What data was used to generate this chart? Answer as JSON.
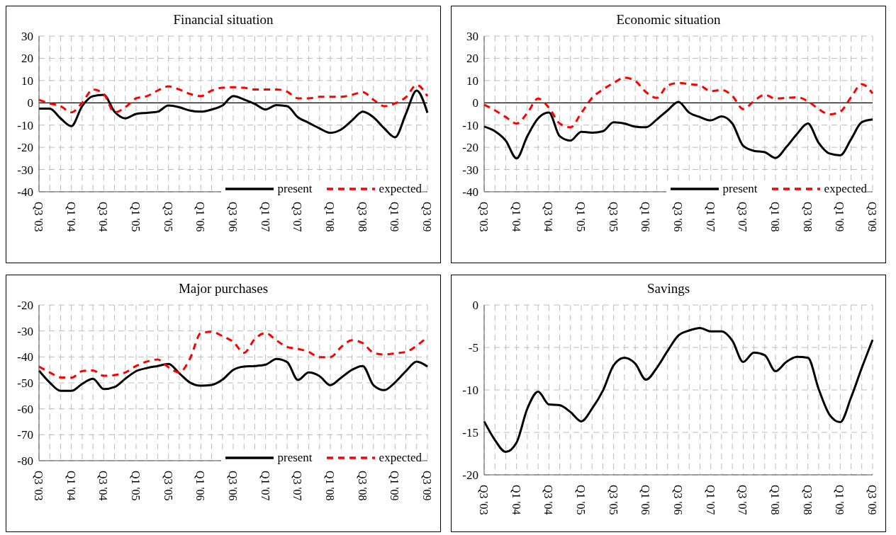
{
  "chart_data": [
    {
      "type": "line",
      "title": "Financial situation",
      "categories": [
        "Q3 '03",
        null,
        null,
        "Q1 '04",
        null,
        null,
        "Q3 '04",
        null,
        null,
        "Q1 '05",
        null,
        null,
        "Q3 '05",
        null,
        null,
        "Q1 '06",
        null,
        null,
        "Q3 '06",
        null,
        null,
        "Q1 '07",
        null,
        null,
        "Q3 '07",
        null,
        null,
        "Q1 '08",
        null,
        null,
        "Q3 '08",
        null,
        null,
        "Q1 '09",
        null,
        null,
        "Q3 '09"
      ],
      "series": [
        {
          "name": "present",
          "color": "#000000",
          "line_style": "solid",
          "values": [
            -2.6,
            -2.6,
            -7,
            -10.5,
            -1.5,
            3,
            3.6,
            -4,
            -7,
            -5,
            -4.5,
            -4,
            -1.2,
            -2,
            -3.5,
            -4,
            -3,
            -1.2,
            3,
            1.5,
            -0.5,
            -3,
            -1,
            -1.5,
            -6.5,
            -9,
            -11.5,
            -13.5,
            -12,
            -8,
            -4,
            -6.5,
            -11.5,
            -15.5,
            -5,
            5.5,
            -4.5
          ]
        },
        {
          "name": "expected",
          "color": "#ff0000",
          "line_style": "dashed",
          "values": [
            1.3,
            -0.3,
            -1.5,
            -4.3,
            0,
            6,
            4,
            -4.3,
            -2,
            2,
            3,
            5.5,
            7.4,
            6,
            4,
            3,
            5.5,
            6.8,
            7,
            6.8,
            6,
            6,
            6,
            5,
            2,
            2,
            2.7,
            2.7,
            2.7,
            3.6,
            4.8,
            1.4,
            -1.5,
            -0.3,
            2.5,
            8,
            3
          ]
        }
      ],
      "ylim": [
        -40,
        30
      ],
      "yticks": [
        -40,
        -30,
        -20,
        -10,
        0,
        10,
        20,
        30
      ],
      "grid": true,
      "legend": "bottom right",
      "ref_lines": [
        {
          "axis": "y",
          "value": 0,
          "color": "#000000"
        }
      ]
    },
    {
      "type": "line",
      "title": "Economic situation",
      "categories": [
        "Q3 '03",
        null,
        null,
        "Q1 '04",
        null,
        null,
        "Q3 '04",
        null,
        null,
        "Q1 '05",
        null,
        null,
        "Q3 '05",
        null,
        null,
        "Q1 '06",
        null,
        null,
        "Q3 '06",
        null,
        null,
        "Q1 '07",
        null,
        null,
        "Q3 '07",
        null,
        null,
        "Q1 '08",
        null,
        null,
        "Q3 '08",
        null,
        null,
        "Q1 '09",
        null,
        null,
        "Q3 '09"
      ],
      "series": [
        {
          "name": "present",
          "color": "#000000",
          "line_style": "solid",
          "values": [
            -10.7,
            -12.8,
            -17,
            -25,
            -15,
            -7,
            -4.4,
            -15,
            -17,
            -13,
            -13.4,
            -12.8,
            -8.7,
            -9.3,
            -10.7,
            -11,
            -7.5,
            -3.4,
            0.4,
            -4.4,
            -6.4,
            -7.9,
            -6.1,
            -9.3,
            -19.3,
            -21.6,
            -22.2,
            -24.8,
            -19.9,
            -14,
            -9.3,
            -18,
            -22.8,
            -23.6,
            -16.4,
            -8.7,
            -7.5
          ]
        },
        {
          "name": "expected",
          "color": "#ff0000",
          "line_style": "dashed",
          "values": [
            -0.8,
            -3.4,
            -6.4,
            -9.3,
            -4.6,
            1.9,
            -2.2,
            -9.3,
            -11,
            -4.6,
            2.2,
            6,
            8.9,
            11.3,
            9.8,
            4.8,
            2.2,
            7.8,
            8.9,
            8.4,
            7.8,
            5.2,
            5.8,
            3.1,
            -2.8,
            0.7,
            3.6,
            1.9,
            2.2,
            2.5,
            0.7,
            -2.8,
            -5.2,
            -4,
            2.5,
            8.4,
            4.2
          ]
        }
      ],
      "ylim": [
        -40,
        30
      ],
      "yticks": [
        -40,
        -30,
        -20,
        -10,
        0,
        10,
        20,
        30
      ],
      "grid": true,
      "legend": "bottom right",
      "ref_lines": [
        {
          "axis": "y",
          "value": 0,
          "color": "#000000"
        }
      ]
    },
    {
      "type": "line",
      "title": "Major purchases",
      "categories": [
        "Q3 '03",
        null,
        null,
        "Q1 '04",
        null,
        null,
        "Q3 '04",
        null,
        null,
        "Q1 '05",
        null,
        null,
        "Q3 '05",
        null,
        null,
        "Q1 '06",
        null,
        null,
        "Q3 '06",
        null,
        null,
        "Q1 '07",
        null,
        null,
        "Q3 '07",
        null,
        null,
        "Q1 '08",
        null,
        null,
        "Q3 '08",
        null,
        null,
        "Q1 '09",
        null,
        null,
        "Q3 '09"
      ],
      "series": [
        {
          "name": "present",
          "color": "#000000",
          "line_style": "solid",
          "values": [
            -45.3,
            -49.9,
            -53.1,
            -53.1,
            -50.4,
            -48.4,
            -52.4,
            -51.6,
            -48.4,
            -45.5,
            -44.3,
            -43.5,
            -42.7,
            -46.3,
            -49.9,
            -51.1,
            -50.8,
            -48.8,
            -45,
            -43.7,
            -43.5,
            -43,
            -40.8,
            -42,
            -48.9,
            -46,
            -47.4,
            -50.9,
            -48,
            -45,
            -43.5,
            -50.9,
            -52.8,
            -49.8,
            -45.5,
            -41.8,
            -43.7
          ]
        },
        {
          "name": "expected",
          "color": "#ff0000",
          "line_style": "dashed",
          "values": [
            -43.7,
            -46,
            -47.9,
            -48,
            -45.5,
            -45.2,
            -47.3,
            -47,
            -46,
            -43.5,
            -41.8,
            -41,
            -44,
            -46,
            -40.6,
            -30.8,
            -30.3,
            -32,
            -34.2,
            -38.4,
            -33.1,
            -30.8,
            -33.6,
            -36.2,
            -36.9,
            -38.1,
            -40.1,
            -40.1,
            -36.2,
            -33.6,
            -34.7,
            -38.4,
            -39.1,
            -38.6,
            -38.1,
            -35.7,
            -32.3
          ]
        }
      ],
      "ylim": [
        -80,
        -20
      ],
      "yticks": [
        -80,
        -70,
        -60,
        -50,
        -40,
        -30,
        -20
      ],
      "grid": true,
      "legend": "bottom right"
    },
    {
      "type": "line",
      "title": "Savings",
      "categories": [
        "Q3 '03",
        null,
        null,
        "Q1 '04",
        null,
        null,
        "Q3 '04",
        null,
        null,
        "Q1 '05",
        null,
        null,
        "Q3 '05",
        null,
        null,
        "Q1 '06",
        null,
        null,
        "Q3 '06",
        null,
        null,
        "Q1 '07",
        null,
        null,
        "Q3 '07",
        null,
        null,
        "Q1 '08",
        null,
        null,
        "Q3 '08",
        null,
        null,
        "Q1 '09",
        null,
        null,
        "Q3 '09"
      ],
      "series": [
        {
          "color": "#000000",
          "line_style": "solid",
          "values": [
            -13.7,
            -15.9,
            -17.3,
            -16.2,
            -12.2,
            -10.2,
            -11.7,
            -11.8,
            -12.6,
            -13.7,
            -12.2,
            -10.1,
            -7.1,
            -6.2,
            -6.9,
            -8.8,
            -7.4,
            -5.4,
            -3.6,
            -3,
            -2.7,
            -3.1,
            -3.1,
            -4.2,
            -6.7,
            -5.6,
            -5.9,
            -7.8,
            -6.7,
            -6.1,
            -6.2,
            -9.9,
            -12.9,
            -13.8,
            -10.9,
            -7.4,
            -4.1
          ]
        }
      ],
      "ylim": [
        -20,
        0
      ],
      "yticks": [
        -20,
        -15,
        -10,
        -5,
        0
      ],
      "grid": true
    }
  ]
}
